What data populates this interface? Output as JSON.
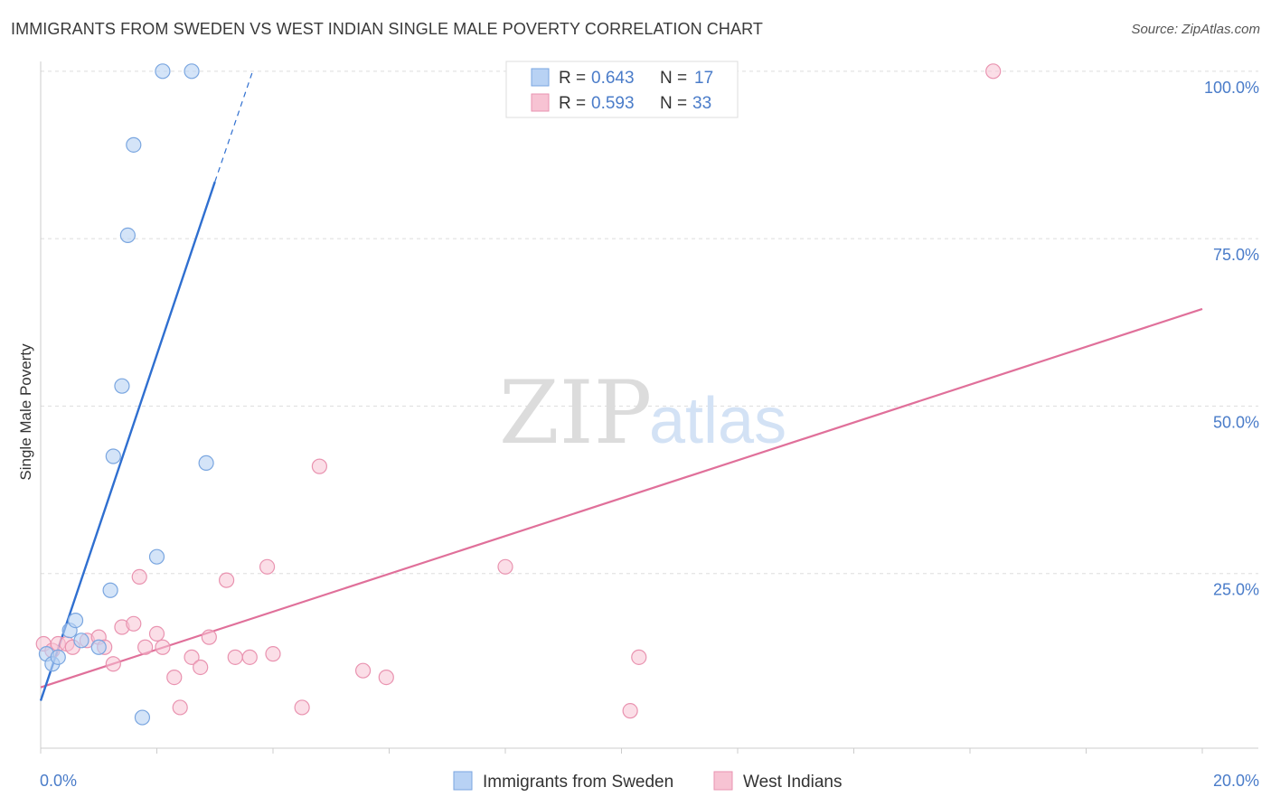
{
  "header": {
    "title": "IMMIGRANTS FROM SWEDEN VS WEST INDIAN SINGLE MALE POVERTY CORRELATION CHART",
    "source": "Source: ZipAtlas.com"
  },
  "watermark": {
    "zip": "ZIP",
    "atlas": "atlas"
  },
  "colors": {
    "sweden_fill": "#b8d2f4",
    "sweden_stroke": "#7aa6e0",
    "sweden_line": "#2f6fd0",
    "wi_fill": "#f7c3d3",
    "wi_stroke": "#e993b0",
    "wi_line": "#e0709a",
    "grid": "#dddddd",
    "axis_text": "#4a7cc9"
  },
  "chart_data": {
    "type": "scatter",
    "title": "IMMIGRANTS FROM SWEDEN VS WEST INDIAN SINGLE MALE POVERTY CORRELATION CHART",
    "xlabel": "",
    "ylabel": "Single Male Poverty",
    "xlim": [
      0,
      20
    ],
    "ylim": [
      0,
      102
    ],
    "x_tick_labels": [
      "0.0%",
      "20.0%"
    ],
    "y_ticks": [
      25,
      50,
      75,
      100
    ],
    "y_tick_labels": [
      "25.0%",
      "50.0%",
      "75.0%",
      "100.0%"
    ],
    "legend": [
      {
        "r_label": "R =",
        "r": "0.643",
        "n_label": "N =",
        "n": "17"
      },
      {
        "r_label": "R =",
        "r": "0.593",
        "n_label": "N =",
        "n": "33"
      }
    ],
    "series": [
      {
        "name": "Immigrants from Sweden",
        "points": [
          [
            0.1,
            13
          ],
          [
            0.2,
            11.5
          ],
          [
            0.3,
            12.5
          ],
          [
            0.5,
            16.5
          ],
          [
            0.6,
            18
          ],
          [
            0.7,
            15
          ],
          [
            1.0,
            14
          ],
          [
            1.2,
            22.5
          ],
          [
            1.25,
            42.5
          ],
          [
            1.4,
            53
          ],
          [
            1.5,
            75.5
          ],
          [
            1.6,
            89
          ],
          [
            1.75,
            3.5
          ],
          [
            2.0,
            27.5
          ],
          [
            2.1,
            100
          ],
          [
            2.6,
            100
          ],
          [
            2.85,
            41.5
          ]
        ],
        "trend": {
          "x": [
            0,
            3.0
          ],
          "y": [
            6,
            83.5
          ]
        },
        "trend_ext": {
          "x": [
            3.0,
            3.65
          ],
          "y": [
            83.5,
            100
          ]
        }
      },
      {
        "name": "West Indians",
        "points": [
          [
            0.05,
            14.5
          ],
          [
            0.2,
            13.5
          ],
          [
            0.3,
            14.5
          ],
          [
            0.45,
            14.5
          ],
          [
            0.55,
            14
          ],
          [
            0.8,
            15
          ],
          [
            1.0,
            15.5
          ],
          [
            1.1,
            14
          ],
          [
            1.25,
            11.5
          ],
          [
            1.4,
            17
          ],
          [
            1.6,
            17.5
          ],
          [
            1.7,
            24.5
          ],
          [
            1.8,
            14
          ],
          [
            2.0,
            16
          ],
          [
            2.1,
            14
          ],
          [
            2.3,
            9.5
          ],
          [
            2.4,
            5
          ],
          [
            2.6,
            12.5
          ],
          [
            2.75,
            11
          ],
          [
            2.9,
            15.5
          ],
          [
            3.2,
            24
          ],
          [
            3.35,
            12.5
          ],
          [
            3.6,
            12.5
          ],
          [
            3.9,
            26
          ],
          [
            4.0,
            13
          ],
          [
            4.5,
            5
          ],
          [
            4.8,
            41
          ],
          [
            5.55,
            10.5
          ],
          [
            5.95,
            9.5
          ],
          [
            8.0,
            26
          ],
          [
            10.15,
            4.5
          ],
          [
            10.3,
            12.5
          ],
          [
            16.4,
            100
          ]
        ],
        "trend": {
          "x": [
            0,
            20
          ],
          "y": [
            8,
            64.5
          ]
        }
      }
    ]
  },
  "bottom_legend": {
    "sweden": "Immigrants from Sweden",
    "west_indians": "West Indians"
  }
}
